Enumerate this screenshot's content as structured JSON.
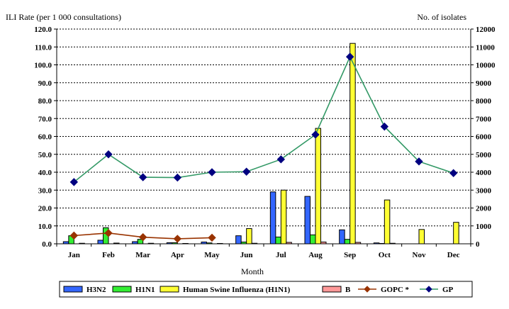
{
  "chart_data": {
    "type": "bar",
    "left_axis_title": "ILI Rate (per 1 000 consultations)",
    "right_axis_title": "No. of isolates",
    "xlabel": "Month",
    "categories": [
      "Jan",
      "Feb",
      "Mar",
      "Apr",
      "May",
      "Jun",
      "Jul",
      "Aug",
      "Sep",
      "Oct",
      "Nov",
      "Dec"
    ],
    "y_left": {
      "min": 0,
      "max": 120,
      "step": 10,
      "ticks": [
        "0.0",
        "10.0",
        "20.0",
        "30.0",
        "40.0",
        "50.0",
        "60.0",
        "70.0",
        "80.0",
        "90.0",
        "100.0",
        "110.0",
        "120.0"
      ]
    },
    "y_right": {
      "min": 0,
      "max": 12000,
      "step": 1000,
      "ticks": [
        "0",
        "1000",
        "2000",
        "3000",
        "4000",
        "5000",
        "6000",
        "7000",
        "8000",
        "9000",
        "10000",
        "11000",
        "12000"
      ]
    },
    "grid": "horizontal-dashed",
    "legend_position": "bottom",
    "bar_series": [
      {
        "name": "H3N2",
        "color": "#3366ff",
        "axis": "right",
        "values": [
          120,
          200,
          120,
          60,
          100,
          450,
          2900,
          2650,
          780,
          50,
          0,
          0
        ]
      },
      {
        "name": "H1N1",
        "color": "#33ee33",
        "axis": "right",
        "values": [
          450,
          900,
          250,
          60,
          50,
          100,
          380,
          500,
          250,
          20,
          0,
          0
        ]
      },
      {
        "name": "Human Swine Influenza (H1N1)",
        "color": "#ffff33",
        "axis": "right",
        "values": [
          0,
          0,
          0,
          0,
          0,
          850,
          3000,
          6450,
          11200,
          2450,
          800,
          1200
        ]
      },
      {
        "name": "B",
        "color": "#ff9999",
        "axis": "right",
        "values": [
          30,
          40,
          30,
          20,
          20,
          30,
          80,
          100,
          80,
          30,
          0,
          0
        ]
      }
    ],
    "line_series": [
      {
        "name": "GOPC *",
        "color": "#993300",
        "marker": "diamond",
        "axis": "left",
        "values": [
          4.6,
          6.0,
          3.7,
          2.8,
          3.4,
          null,
          null,
          null,
          null,
          null,
          null,
          null
        ]
      },
      {
        "name": "GP",
        "color": "#339966",
        "marker": "diamond",
        "marker_color": "#000080",
        "axis": "left",
        "values": [
          34.5,
          50.0,
          37.2,
          37.0,
          40.0,
          40.3,
          47.2,
          61.0,
          104.5,
          65.5,
          46.0,
          39.5
        ]
      }
    ]
  }
}
